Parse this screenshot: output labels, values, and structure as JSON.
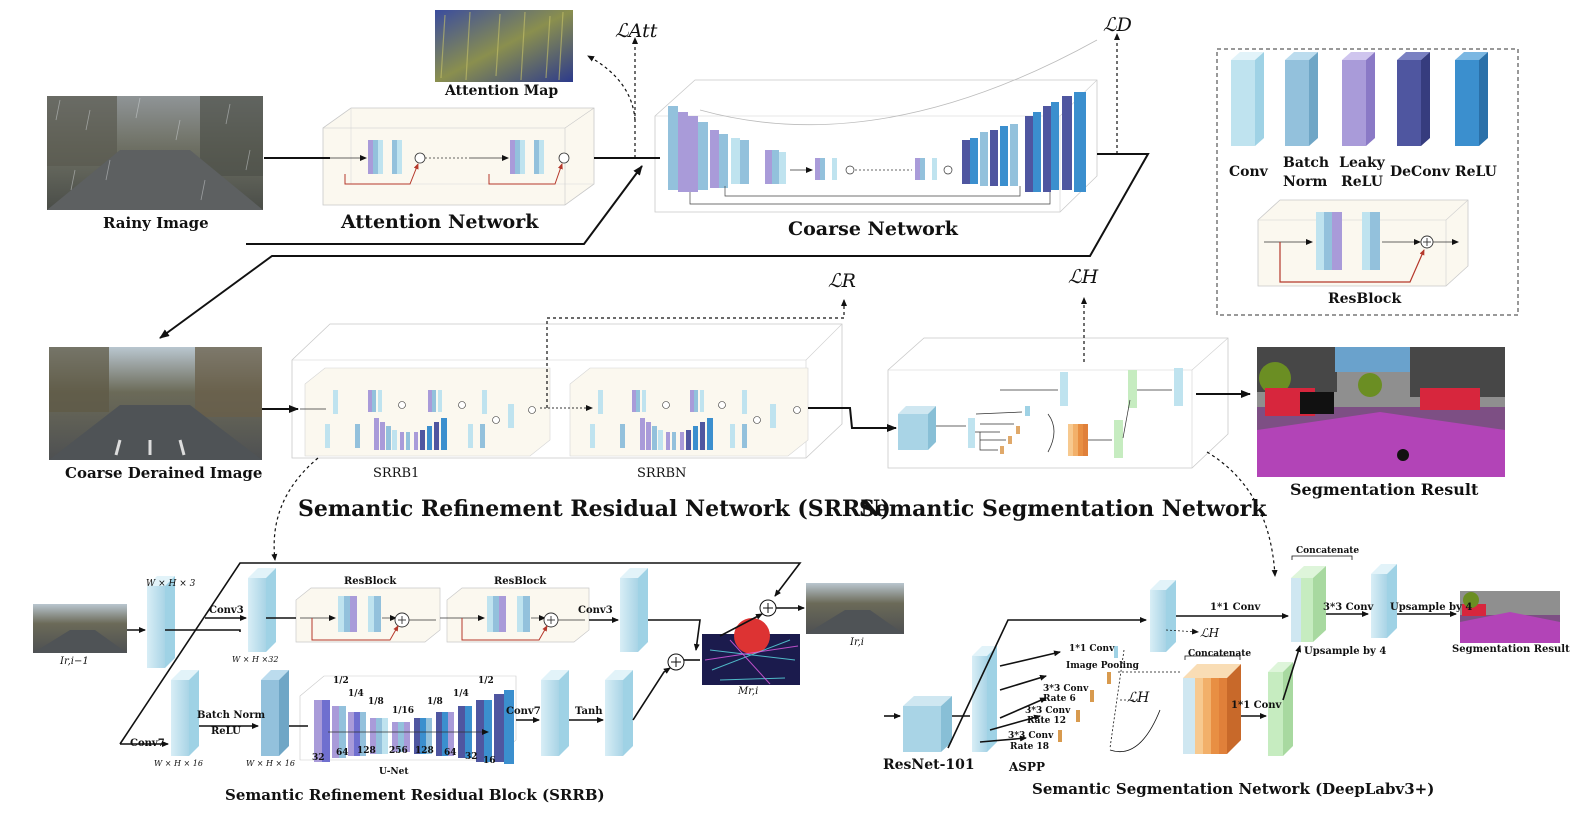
{
  "top": {
    "rainy_image": "Rainy Image",
    "attention_map": "Attention Map",
    "attention_network": "Attention Network",
    "coarse_network": "Coarse Network",
    "loss_att": "ℒAtt",
    "loss_d": "ℒD"
  },
  "legend": {
    "items": [
      "Conv",
      "Batch Norm",
      "Leaky ReLU",
      "DeConv",
      "ReLU"
    ],
    "resblock": "ResBlock",
    "colors": [
      "#bfe3ef",
      "#93c1dc",
      "#a99bd9",
      "#4f56a0",
      "#3b8fce"
    ]
  },
  "middle": {
    "coarse_derained": "Coarse Derained Image",
    "srrb_1": "SRRB1",
    "srrb_n": "SRRBN",
    "srrn_title": "Semantic Refinement Residual Network (SRRN)",
    "ssn_title": "Semantic Segmentation Network",
    "seg_result": "Segmentation Result",
    "loss_r": "ℒR",
    "loss_h": "ℒH"
  },
  "srrb": {
    "title": "Semantic Refinement Residual Block (SRRB)",
    "input": "Ir,i−1",
    "output": "Ir,i",
    "mask": "Mr,i",
    "dim_whx3": "W × H × 3",
    "dim_whx32": "W × H ×32",
    "dim_whx16_a": "W × H × 16",
    "dim_whx16_b": "W × H × 16",
    "conv3_a": "Conv3",
    "conv3_b": "Conv3",
    "resblock_a": "ResBlock",
    "resblock_b": "ResBlock",
    "conv7_a": "Conv7",
    "conv7_b": "Conv7",
    "bn": "Batch Norm",
    "relu": "ReLU",
    "tanh": "Tanh",
    "unet": "U-Net",
    "scales": [
      "1/2",
      "1/4",
      "1/8",
      "1/16",
      "1/8",
      "1/4",
      "1/2"
    ],
    "channels": [
      "32",
      "64",
      "128",
      "256",
      "128",
      "64",
      "32",
      "16"
    ]
  },
  "deeplab": {
    "title": "Semantic Segmentation Network (DeepLabv3+)",
    "resnet": "ResNet-101",
    "aspp": "ASPP",
    "b1": "1*1 Conv",
    "b2": "Image Pooling",
    "b3a": "3*3 Conv",
    "b3b": "Rate 6",
    "b4a": "3*3 Conv",
    "b4b": "Rate 12",
    "b5a": "3*3 Conv",
    "b5b": "Rate 18",
    "concat_a": "Concatenate",
    "concat_b": "Concatenate",
    "conv11_a": "1*1 Conv",
    "conv11_b": "1*1 Conv",
    "conv33": "3*3 Conv",
    "up4_a": "Upsample by 4",
    "up4_b": "Upsample by 4",
    "result": "Segmentation Result",
    "loss_h_a": "ℒH",
    "loss_h_b": "ℒH"
  }
}
